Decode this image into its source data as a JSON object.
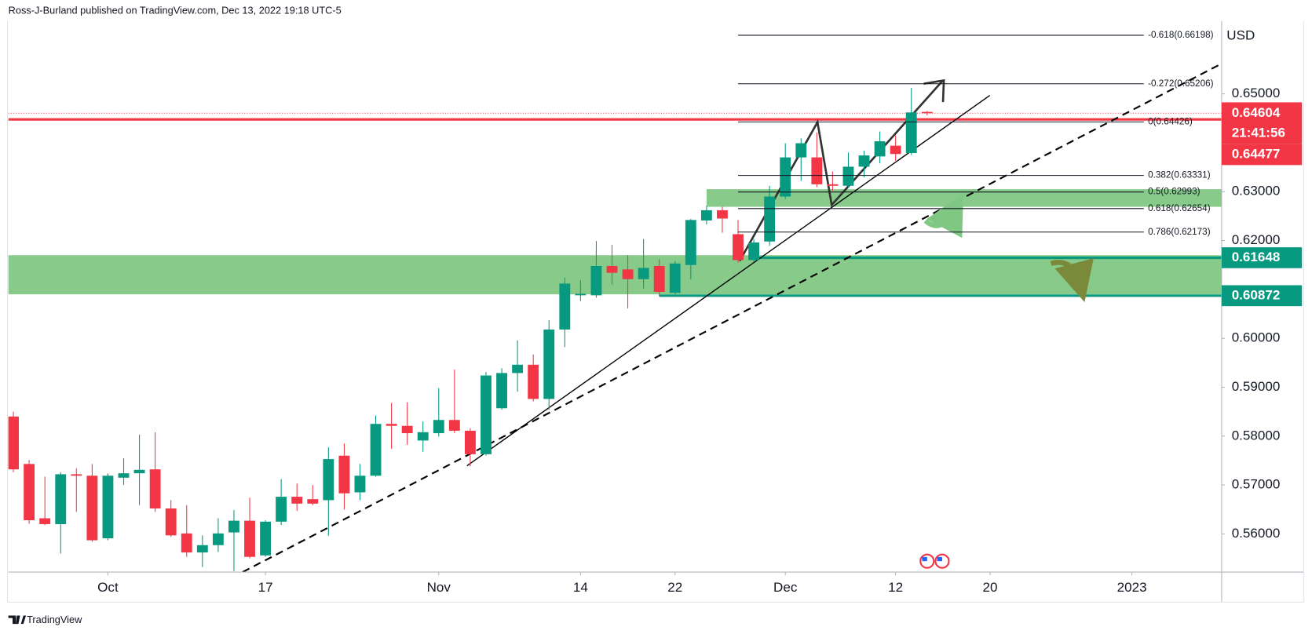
{
  "chart_data": {
    "type": "candlestick",
    "title": "Ross-J-Burland published on TradingView.com, Dec 13, 2022 19:18 UTC-5",
    "currency": "USD",
    "footer": "TradingView",
    "up_color": "#089981",
    "down_color": "#f23645",
    "categories": [
      "2022-09-23",
      "2022-09-26",
      "2022-09-27",
      "2022-09-28",
      "2022-09-29",
      "2022-09-30",
      "2022-10-03",
      "2022-10-04",
      "2022-10-05",
      "2022-10-06",
      "2022-10-07",
      "2022-10-10",
      "2022-10-11",
      "2022-10-12",
      "2022-10-13",
      "2022-10-14",
      "2022-10-17",
      "2022-10-18",
      "2022-10-19",
      "2022-10-20",
      "2022-10-21",
      "2022-10-24",
      "2022-10-25",
      "2022-10-26",
      "2022-10-27",
      "2022-10-28",
      "2022-10-31",
      "2022-11-01",
      "2022-11-02",
      "2022-11-03",
      "2022-11-04",
      "2022-11-07",
      "2022-11-08",
      "2022-11-09",
      "2022-11-10",
      "2022-11-11",
      "2022-11-14",
      "2022-11-15",
      "2022-11-16",
      "2022-11-17",
      "2022-11-18",
      "2022-11-21",
      "2022-11-22",
      "2022-11-23",
      "2022-11-24",
      "2022-11-25",
      "2022-11-28",
      "2022-11-29",
      "2022-11-30",
      "2022-12-01",
      "2022-12-02",
      "2022-12-05",
      "2022-12-06",
      "2022-12-07",
      "2022-12-08",
      "2022-12-09",
      "2022-12-12",
      "2022-12-13",
      "2022-12-14"
    ],
    "open": [
      0.584,
      0.5743,
      0.5632,
      0.562,
      0.5722,
      0.5719,
      0.5591,
      0.5715,
      0.5724,
      0.5732,
      0.5652,
      0.5601,
      0.5562,
      0.5577,
      0.5603,
      0.5627,
      0.5556,
      0.5625,
      0.5676,
      0.5671,
      0.5669,
      0.576,
      0.5685,
      0.5719,
      0.5825,
      0.5821,
      0.5791,
      0.5806,
      0.5833,
      0.5811,
      0.5763,
      0.5857,
      0.5929,
      0.5946,
      0.5876,
      0.6018,
      0.6088,
      0.6088,
      0.6148,
      0.6141,
      0.6121,
      0.6148,
      0.6093,
      0.615,
      0.6241,
      0.6262,
      0.6213,
      0.616,
      0.6198,
      0.629,
      0.637,
      0.637,
      0.6315,
      0.6312,
      0.6351,
      0.6372,
      0.6394,
      0.6379,
      0.6463
    ],
    "high": [
      0.585,
      0.5751,
      0.5717,
      0.5726,
      0.5734,
      0.5743,
      0.5724,
      0.5755,
      0.5803,
      0.5808,
      0.5669,
      0.5659,
      0.5597,
      0.5632,
      0.5649,
      0.5674,
      0.5628,
      0.5712,
      0.5703,
      0.57,
      0.5777,
      0.5785,
      0.5743,
      0.5842,
      0.5868,
      0.5869,
      0.583,
      0.5898,
      0.5936,
      0.5816,
      0.5931,
      0.5939,
      0.5996,
      0.5967,
      0.6037,
      0.6124,
      0.6119,
      0.6199,
      0.6191,
      0.617,
      0.6203,
      0.6162,
      0.6158,
      0.6244,
      0.6271,
      0.6269,
      0.6242,
      0.6203,
      0.6312,
      0.6399,
      0.6409,
      0.6421,
      0.6341,
      0.638,
      0.6384,
      0.6423,
      0.6415,
      0.6512,
      0.6465
    ],
    "low": [
      0.5726,
      0.5621,
      0.5618,
      0.556,
      0.5645,
      0.5584,
      0.5587,
      0.57,
      0.5659,
      0.5645,
      0.5594,
      0.5553,
      0.5532,
      0.5563,
      0.5524,
      0.555,
      0.5553,
      0.5618,
      0.5647,
      0.5659,
      0.5596,
      0.565,
      0.5669,
      0.5717,
      0.5774,
      0.5782,
      0.5768,
      0.5799,
      0.5806,
      0.5738,
      0.576,
      0.5854,
      0.5891,
      0.5871,
      0.5854,
      0.5982,
      0.6076,
      0.6083,
      0.611,
      0.6061,
      0.6102,
      0.6086,
      0.609,
      0.6121,
      0.6233,
      0.6216,
      0.6155,
      0.6156,
      0.6189,
      0.6285,
      0.6322,
      0.6309,
      0.6302,
      0.6309,
      0.6329,
      0.6358,
      0.6363,
      0.6375,
      0.6456
    ],
    "close": [
      0.5732,
      0.5628,
      0.562,
      0.5722,
      0.5719,
      0.5587,
      0.5719,
      0.5724,
      0.5731,
      0.5652,
      0.5597,
      0.5562,
      0.5577,
      0.5601,
      0.5627,
      0.5553,
      0.5625,
      0.5676,
      0.5662,
      0.5662,
      0.5753,
      0.5683,
      0.5719,
      0.5825,
      0.5821,
      0.5806,
      0.5808,
      0.5833,
      0.5811,
      0.5763,
      0.5924,
      0.5929,
      0.5946,
      0.5876,
      0.6018,
      0.6112,
      0.6091,
      0.6148,
      0.6134,
      0.6121,
      0.6144,
      0.6095,
      0.6153,
      0.6242,
      0.6262,
      0.6245,
      0.616,
      0.6196,
      0.629,
      0.637,
      0.6399,
      0.6315,
      0.6312,
      0.6351,
      0.6374,
      0.6403,
      0.6377,
      0.6462,
      0.64604
    ],
    "ylim": [
      0.5522,
      0.6649
    ],
    "yticks": [
      {
        "value": 0.56,
        "label": "0.56000"
      },
      {
        "value": 0.57,
        "label": "0.57000"
      },
      {
        "value": 0.58,
        "label": "0.58000"
      },
      {
        "value": 0.59,
        "label": "0.59000"
      },
      {
        "value": 0.6,
        "label": "0.60000"
      },
      {
        "value": 0.62,
        "label": "0.62000"
      },
      {
        "value": 0.63,
        "label": "0.63000"
      },
      {
        "value": 0.65,
        "label": "0.65000"
      }
    ],
    "xticks": [
      {
        "value": "2022-10-03",
        "label": "Oct"
      },
      {
        "value": "2022-10-17",
        "label": "17"
      },
      {
        "value": "2022-11-01",
        "label": "Nov"
      },
      {
        "value": "2022-11-14",
        "label": "14"
      },
      {
        "value": "2022-11-22",
        "label": "22"
      },
      {
        "value": "2022-12-01",
        "label": "Dec"
      },
      {
        "value": "2022-12-12",
        "label": "12"
      },
      {
        "value": "2022-12-20",
        "label": "20"
      },
      {
        "value": "2023-01-02",
        "label": "2023"
      }
    ],
    "last_price": 0.64604,
    "countdown": "21:41:56",
    "levels": [
      {
        "value": 0.64477,
        "color": "#f23645"
      },
      {
        "value": 0.61648,
        "color": "#089981",
        "start": "2022-11-29"
      },
      {
        "value": 0.60872,
        "color": "#089981",
        "start": "2022-11-21"
      }
    ],
    "zones": [
      {
        "from": 0.609,
        "to": 0.617,
        "color": "#81c784"
      },
      {
        "from": 0.6269,
        "to": 0.6305,
        "color": "#81c784",
        "start": "2022-11-24"
      }
    ],
    "fib_start": "2022-11-28",
    "fib_levels": [
      {
        "price": 0.66198,
        "label": "-0.618(0.66198)"
      },
      {
        "price": 0.65206,
        "label": "-0.272(0.65206)"
      },
      {
        "price": 0.64426,
        "label": "0(0.64426)"
      },
      {
        "price": 0.63331,
        "label": "0.382(0.63331)"
      },
      {
        "price": 0.62993,
        "label": "0.5(0.62993)"
      },
      {
        "price": 0.62654,
        "label": "0.618(0.62654)"
      },
      {
        "price": 0.62173,
        "label": "0.786(0.62173)"
      }
    ]
  }
}
